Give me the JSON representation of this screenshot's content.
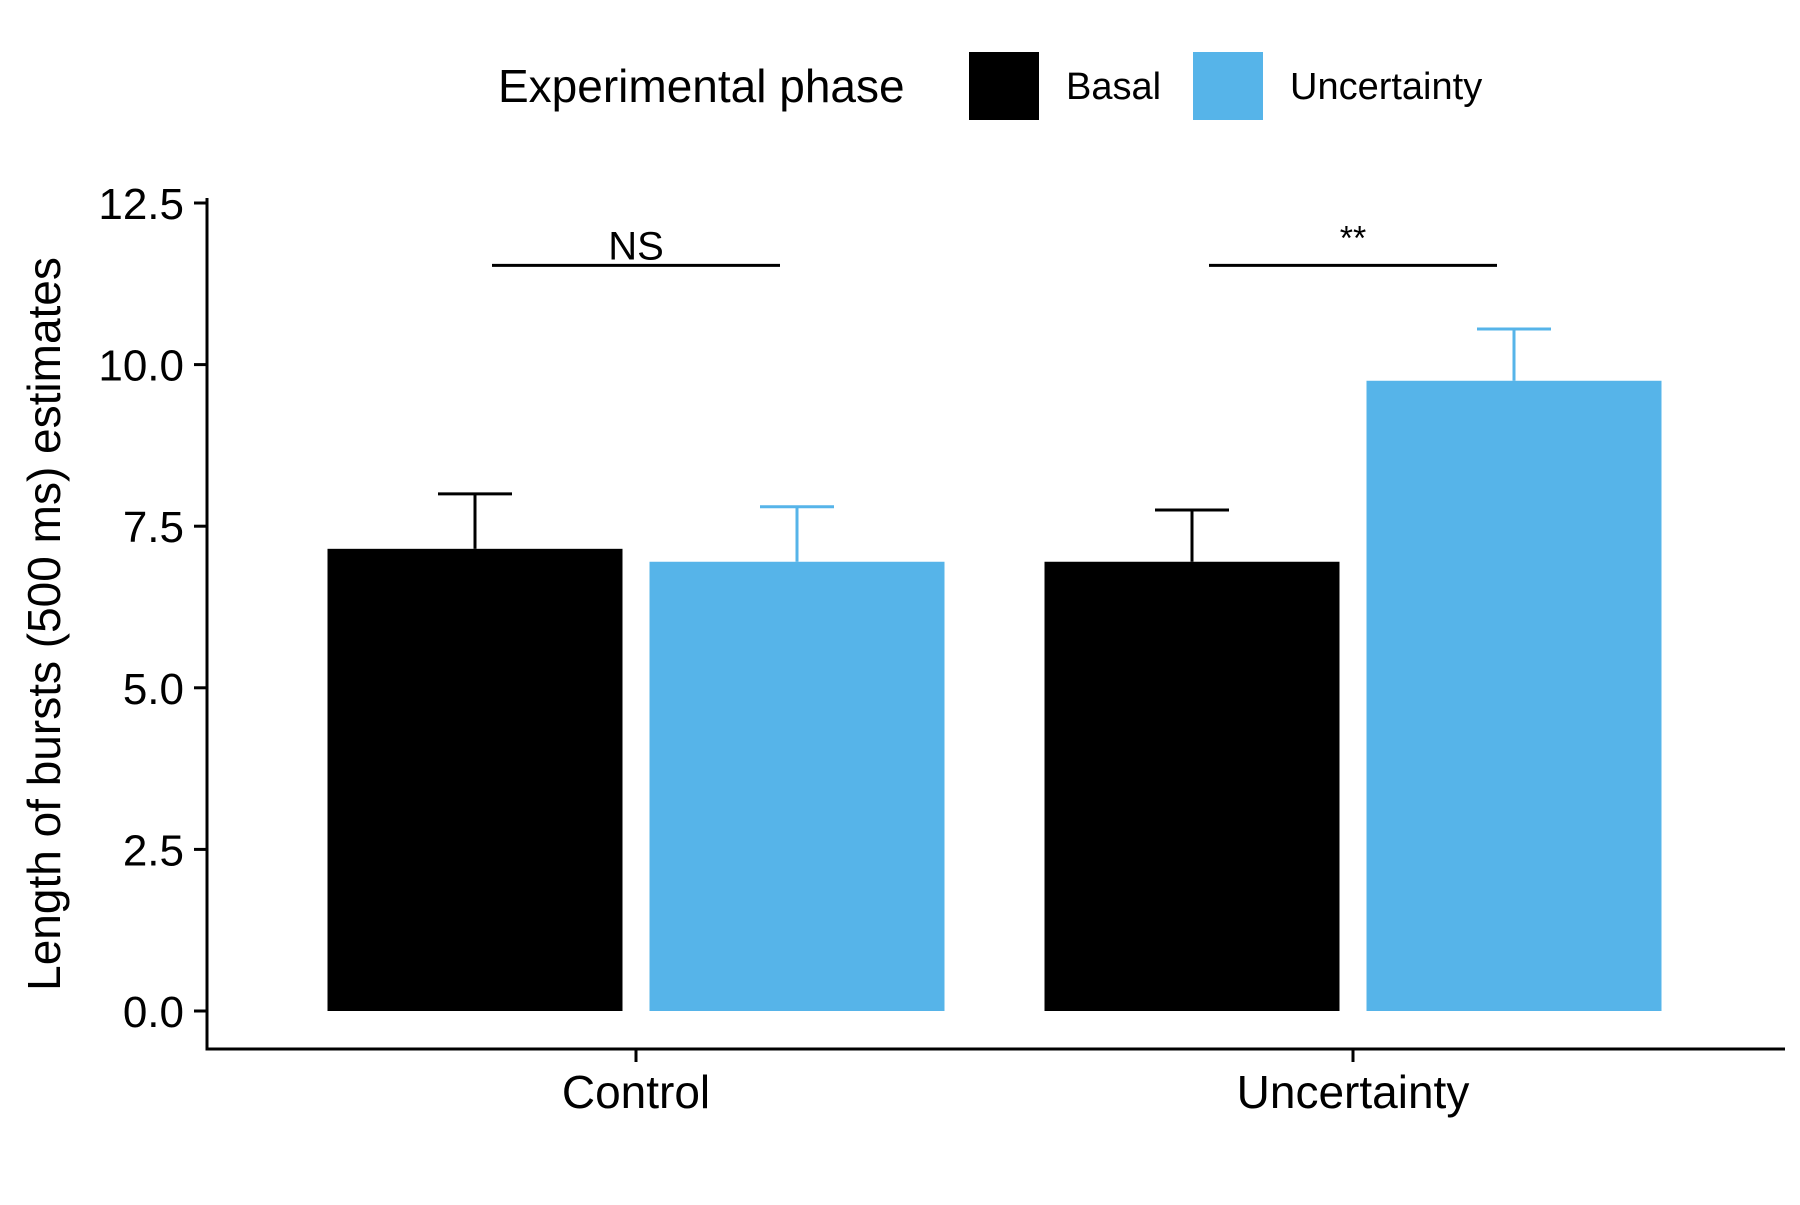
{
  "chart_data": {
    "type": "bar",
    "legend": {
      "title": "Experimental phase",
      "placement": "top",
      "entries": [
        {
          "label": "Basal",
          "color": "#000000"
        },
        {
          "label": "Uncertainty",
          "color": "#56B4E9"
        }
      ]
    },
    "ylabel": "Length of bursts (500 ms) estimates",
    "xlabel": "",
    "ylim": [
      0,
      12.5
    ],
    "yticks": [
      "0.0",
      "2.5",
      "5.0",
      "7.5",
      "10.0",
      "12.5"
    ],
    "categories": [
      "Control",
      "Uncertainty"
    ],
    "series": [
      {
        "name": "Basal",
        "color": "#000000",
        "values": [
          7.15,
          6.95
        ],
        "error": [
          0.85,
          0.8
        ]
      },
      {
        "name": "Uncertainty",
        "color": "#56B4E9",
        "values": [
          6.95,
          9.75
        ],
        "error": [
          0.85,
          0.8
        ]
      }
    ],
    "annotations": [
      {
        "category": "Control",
        "label": "NS",
        "y": 12.0
      },
      {
        "category": "Uncertainty",
        "label": "**",
        "y": 12.0
      }
    ],
    "grid": false
  }
}
